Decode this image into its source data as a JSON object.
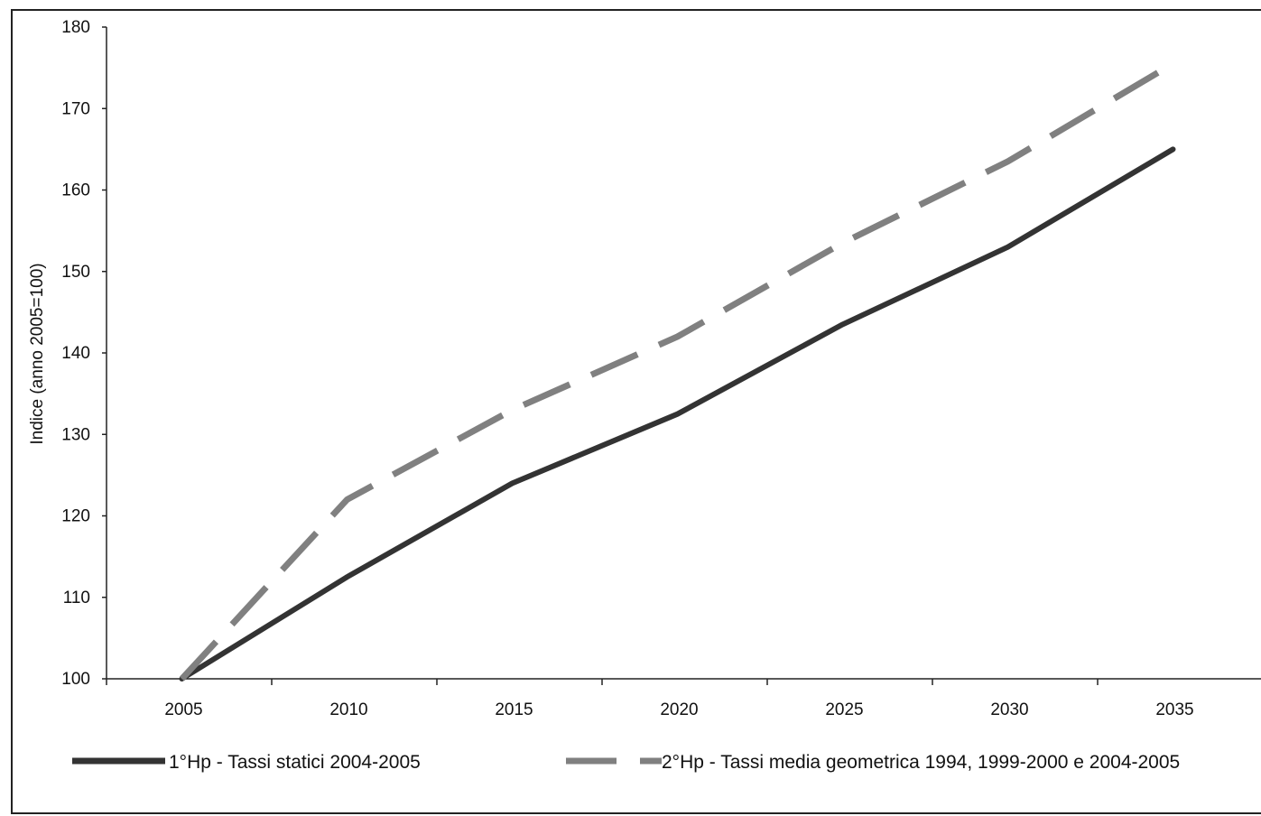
{
  "chart_data": {
    "type": "line",
    "title": "",
    "xlabel": "",
    "ylabel": "Indice (anno 2005=100)",
    "x": [
      2005,
      2010,
      2015,
      2020,
      2025,
      2030,
      2035
    ],
    "x_tick_labels": [
      "2005",
      "2010",
      "2015",
      "2020",
      "2025",
      "2030",
      "2035"
    ],
    "ylim": [
      100,
      180
    ],
    "y_ticks": [
      100,
      110,
      120,
      130,
      140,
      150,
      160,
      170,
      180
    ],
    "y_tick_labels": [
      "100",
      "110",
      "120",
      "130",
      "140",
      "150",
      "160",
      "170",
      "180"
    ],
    "grid": false,
    "legend_position": "bottom",
    "series": [
      {
        "name": "1°Hp - Tassi statici 2004-2005",
        "values": [
          100,
          112.5,
          124,
          132.5,
          143.5,
          153,
          165
        ],
        "color": "#333333",
        "style": "solid"
      },
      {
        "name": "2°Hp - Tassi media geometrica 1994, 1999-2000 e 2004-2005",
        "values": [
          100,
          122,
          133,
          142,
          153.5,
          163.5,
          175.5
        ],
        "color": "#808080",
        "style": "dashed"
      }
    ]
  }
}
